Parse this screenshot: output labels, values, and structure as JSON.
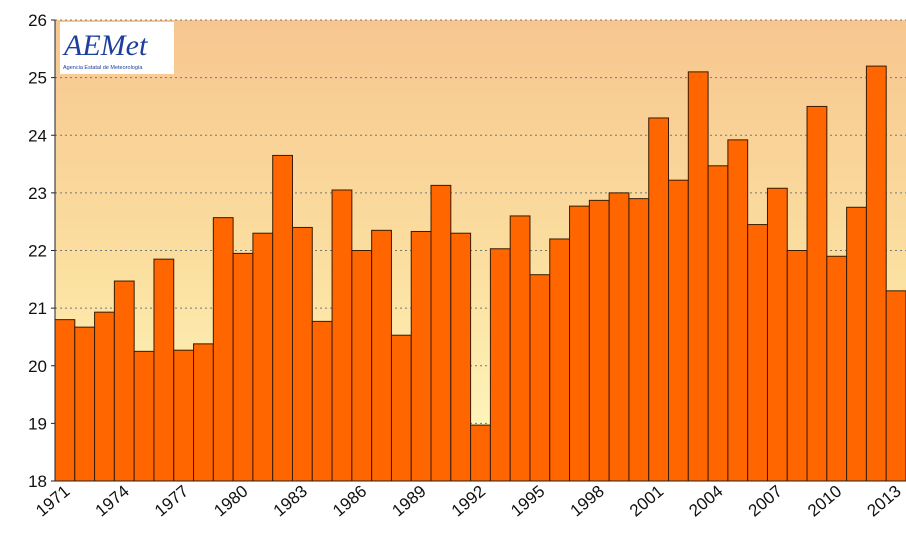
{
  "logo": {
    "name": "AEMet",
    "subtitle": "Agencia Estatal de Meteorología"
  },
  "chart_data": {
    "type": "bar",
    "categories": [
      "1971",
      null,
      null,
      "1974",
      null,
      null,
      "1977",
      null,
      null,
      "1980",
      null,
      null,
      "1983",
      null,
      null,
      "1986",
      null,
      null,
      "1989",
      null,
      null,
      "1992",
      null,
      null,
      "1995",
      null,
      null,
      "1998",
      null,
      null,
      "2001",
      null,
      null,
      "2004",
      null,
      null,
      "2007",
      null,
      null,
      "2010",
      null,
      null,
      "2013"
    ],
    "values": [
      20.8,
      20.67,
      20.93,
      21.47,
      20.25,
      21.85,
      20.27,
      20.38,
      22.57,
      21.95,
      22.3,
      23.65,
      22.4,
      20.77,
      23.05,
      22.0,
      22.35,
      20.53,
      22.33,
      23.13,
      22.3,
      18.97,
      22.03,
      22.6,
      21.58,
      22.2,
      22.77,
      22.87,
      23.0,
      22.9,
      24.3,
      23.22,
      25.1,
      23.47,
      23.92,
      22.45,
      23.08,
      22.0,
      24.5,
      21.9,
      22.75,
      25.2,
      21.3
    ],
    "color": "#ff6600",
    "ylim": [
      18,
      26
    ],
    "yticks": [
      18,
      19,
      20,
      21,
      22,
      23,
      24,
      25,
      26
    ],
    "grid": true
  }
}
